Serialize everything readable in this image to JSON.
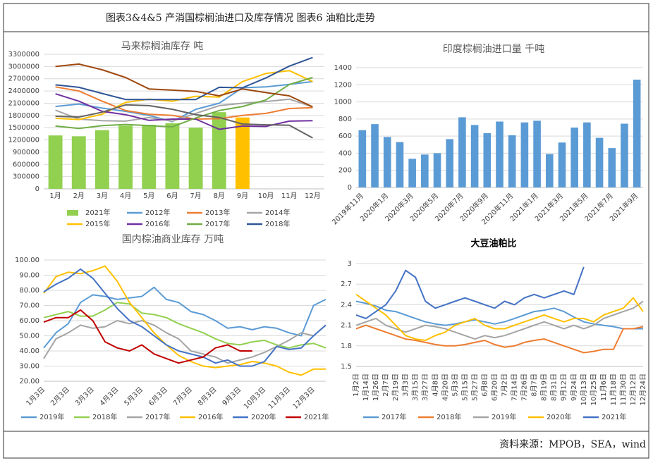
{
  "header": {
    "title": "图表3&4&5 产消国棕榈油进口及库存情况 图表6 油粕比走势"
  },
  "footer": {
    "source": "资料来源：MPOB，SEA，wind"
  },
  "chart_data": [
    {
      "type": "combo",
      "title": "马来棕榈油库存    吨",
      "categories": [
        "1月",
        "2月",
        "3月",
        "4月",
        "5月",
        "6月",
        "7月",
        "8月",
        "9月",
        "10月",
        "11月",
        "12月"
      ],
      "ylim": [
        0,
        3300000
      ],
      "yticks": [
        0,
        300000,
        600000,
        900000,
        1200000,
        1500000,
        1800000,
        2100000,
        2400000,
        2700000,
        3000000,
        3300000
      ],
      "series": [
        {
          "name": "2021年",
          "kind": "bar",
          "color": "#92d050",
          "colors": [
            "#92d050",
            "#92d050",
            "#92d050",
            "#92d050",
            "#92d050",
            "#92d050",
            "#92d050",
            "#92d050",
            "#ffc000",
            null,
            null,
            null
          ],
          "values": [
            1310000,
            1290000,
            1440000,
            1550000,
            1570000,
            1610000,
            1500000,
            1880000,
            1750000,
            null,
            null,
            null
          ]
        },
        {
          "name": "2012年",
          "kind": "line",
          "color": "#5b9bd5",
          "values": [
            2020000,
            2080000,
            1980000,
            1900000,
            1800000,
            1650000,
            1950000,
            2100000,
            2480000,
            2500000,
            2560000,
            2630000
          ]
        },
        {
          "name": "2013年",
          "kind": "line",
          "color": "#ed7d31",
          "values": [
            2500000,
            2400000,
            2150000,
            1920000,
            1830000,
            1800000,
            1710000,
            1720000,
            1800000,
            1850000,
            1970000,
            1990000
          ]
        },
        {
          "name": "2014年",
          "kind": "line",
          "color": "#a5a5a5",
          "values": [
            1930000,
            1710000,
            1670000,
            1660000,
            1750000,
            1660000,
            1850000,
            2040000,
            2100000,
            2140000,
            2200000,
            2010000
          ]
        },
        {
          "name": "2015年",
          "kind": "line",
          "color": "#ffc000",
          "values": [
            1730000,
            1700000,
            1830000,
            2120000,
            2200000,
            2150000,
            2270000,
            2250000,
            2630000,
            2830000,
            2900000,
            2630000
          ]
        },
        {
          "name": "2016年",
          "kind": "line",
          "color": "#7030a0",
          "values": [
            2330000,
            2150000,
            1900000,
            1820000,
            1680000,
            1710000,
            1710000,
            1460000,
            1540000,
            1530000,
            1660000,
            1670000
          ]
        },
        {
          "name": "2017年",
          "kind": "line",
          "color": "#70ad47",
          "values": [
            1540000,
            1480000,
            1550000,
            1580000,
            1550000,
            1520000,
            1740000,
            1920000,
            2020000,
            2180000,
            2560000,
            2730000
          ]
        },
        {
          "name": "2018年",
          "kind": "line",
          "color": "#2f5597",
          "values": [
            2550000,
            2490000,
            2340000,
            2190000,
            2190000,
            2190000,
            2190000,
            2490000,
            2480000,
            2720000,
            3010000,
            3220000
          ]
        },
        {
          "kind": "line",
          "color": "#9e480e",
          "values": [
            3000000,
            3060000,
            2920000,
            2730000,
            2450000,
            2420000,
            2390000,
            2280000,
            2450000,
            2360000,
            2280000,
            2010000
          ]
        },
        {
          "kind": "line",
          "color": "#636363",
          "values": [
            1780000,
            1760000,
            1880000,
            2060000,
            2040000,
            1950000,
            1820000,
            1750000,
            1590000,
            1570000,
            1560000,
            1250000
          ]
        }
      ]
    },
    {
      "type": "bar",
      "title": "印度棕榈油进口量    千吨",
      "color": "#5b9bd5",
      "categories": [
        "2019年11月",
        null,
        "2020年1月",
        null,
        "2020年3月",
        null,
        "2020年5月",
        null,
        "2020年7月",
        null,
        "2020年9月",
        null,
        "2020年11月",
        null,
        "2021年1月",
        null,
        "2021年3月",
        null,
        "2021年5月",
        null,
        "2021年7月",
        null,
        "2021年9月"
      ],
      "values": [
        670,
        740,
        590,
        530,
        335,
        385,
        400,
        565,
        820,
        730,
        635,
        770,
        610,
        760,
        780,
        390,
        525,
        700,
        760,
        580,
        460,
        745,
        1260
      ],
      "ylim": [
        0,
        1400
      ],
      "yticks": [
        0,
        200,
        400,
        600,
        800,
        1000,
        1200,
        1400
      ]
    },
    {
      "type": "line",
      "title": "国内棕油商业库存  万吨",
      "categories": [
        "1月3日",
        null,
        "2月3日",
        null,
        "3月3日",
        null,
        "4月3日",
        null,
        "5月3日",
        null,
        "6月3日",
        null,
        "7月3日",
        null,
        "8月3日",
        null,
        "9月3日",
        null,
        "10月3日",
        null,
        "11月3日",
        null,
        "12月3日",
        null
      ],
      "ylim": [
        20,
        100
      ],
      "yticks": [
        {
          "value": 20,
          "label": "20.00"
        },
        {
          "value": 30,
          "label": "30.00"
        },
        {
          "value": 40,
          "label": "40.00"
        },
        {
          "value": 50,
          "label": "50.00"
        },
        {
          "value": 60,
          "label": "60.00"
        },
        {
          "value": 70,
          "label": "70.00"
        },
        {
          "value": 80,
          "label": "80.00"
        },
        {
          "value": 90,
          "label": "90.00"
        },
        {
          "value": 100,
          "label": "100.00"
        }
      ],
      "series": [
        {
          "name": "2019年",
          "color": "#5b9bd5",
          "values": [
            42,
            52,
            58,
            72,
            77,
            76,
            74,
            75,
            76,
            82,
            74,
            72,
            66,
            64,
            60,
            55,
            56,
            54,
            56,
            55,
            52,
            50,
            70,
            74
          ]
        },
        {
          "name": "2018年",
          "color": "#92d050",
          "values": [
            62,
            64,
            66,
            63,
            63,
            67,
            72,
            71,
            65,
            64,
            62,
            58,
            55,
            52,
            48,
            45,
            44,
            46,
            47,
            44,
            42,
            44,
            45,
            42
          ]
        },
        {
          "name": "2017年",
          "color": "#a5a5a5",
          "values": [
            35,
            48,
            52,
            57,
            55,
            56,
            60,
            58,
            60,
            57,
            52,
            48,
            40,
            38,
            36,
            32,
            34,
            36,
            39,
            43,
            47,
            52,
            50,
            57
          ]
        },
        {
          "name": "2016年",
          "color": "#ffc000",
          "values": [
            78,
            89,
            92,
            91,
            93,
            96,
            86,
            72,
            62,
            52,
            44,
            37,
            33,
            30,
            29,
            30,
            31,
            33,
            32,
            30,
            26,
            24,
            28,
            28
          ]
        },
        {
          "name": "2020年",
          "color": "#4472c4",
          "values": [
            79,
            84,
            88,
            94,
            88,
            78,
            68,
            60,
            56,
            50,
            44,
            40,
            38,
            36,
            32,
            34,
            30,
            30,
            33,
            43,
            41,
            42,
            50,
            57
          ]
        },
        {
          "name": "2021年",
          "color": "#c00000",
          "values": [
            59,
            62,
            62,
            67,
            60,
            46,
            42,
            40,
            44,
            38,
            35,
            32,
            34,
            36,
            42,
            44,
            40,
            40,
            null,
            null,
            null,
            null,
            null,
            null
          ]
        }
      ]
    },
    {
      "type": "line",
      "title": "大豆油粕比",
      "categories": [
        "1月2日",
        "1月14日",
        "1月26日",
        "2月7日",
        "2月19日",
        "3月3日",
        "3月15日",
        "3月27日",
        "4月8日",
        "4月20日",
        "5月3日",
        "5月15日",
        "5月27日",
        "6月8日",
        "6月20日",
        "7月2日",
        "7月14日",
        "7月26日",
        "8月7日",
        "8月19日",
        "8月31日",
        "9月12日",
        "9月24日",
        "10月13日",
        "10月25日",
        "11月6日",
        "11月18日",
        "11月30日",
        "12月12日",
        "12月24日"
      ],
      "ylim": [
        1.5,
        3
      ],
      "yticks": [
        1.5,
        1.8,
        2.1,
        2.4,
        2.7,
        3
      ],
      "series": [
        {
          "name": "2017年",
          "color": "#5b9bd5",
          "values": [
            2.45,
            2.42,
            2.38,
            2.32,
            2.3,
            2.25,
            2.2,
            2.15,
            2.12,
            2.1,
            2.12,
            2.15,
            2.18,
            2.15,
            2.12,
            2.15,
            2.2,
            2.25,
            2.3,
            2.32,
            2.35,
            2.3,
            2.22,
            2.15,
            2.12,
            2.1,
            2.08,
            2.05,
            2.05,
            2.05
          ]
        },
        {
          "name": "2018年",
          "color": "#ed7d31",
          "values": [
            2.05,
            2.1,
            2.05,
            2.0,
            1.95,
            1.9,
            1.88,
            1.85,
            1.82,
            1.8,
            1.8,
            1.82,
            1.85,
            1.88,
            1.82,
            1.78,
            1.8,
            1.85,
            1.88,
            1.9,
            1.85,
            1.8,
            1.75,
            1.7,
            1.72,
            1.75,
            1.75,
            2.05,
            2.05,
            2.08
          ]
        },
        {
          "name": "2019年",
          "color": "#a5a5a5",
          "values": [
            2.1,
            2.15,
            2.2,
            2.1,
            2.05,
            2.0,
            2.05,
            2.1,
            2.08,
            2.05,
            2.0,
            1.95,
            1.9,
            1.95,
            1.92,
            1.95,
            2.0,
            2.05,
            2.1,
            2.15,
            2.1,
            2.05,
            2.1,
            2.05,
            2.1,
            2.2,
            2.25,
            2.3,
            2.35,
            2.45
          ]
        },
        {
          "name": "2020年",
          "color": "#ffc000",
          "values": [
            2.55,
            2.45,
            2.35,
            2.25,
            2.1,
            1.95,
            1.9,
            1.88,
            1.95,
            2.0,
            2.1,
            2.15,
            2.2,
            2.1,
            2.05,
            2.05,
            2.1,
            2.15,
            2.2,
            2.25,
            2.2,
            2.15,
            2.2,
            2.2,
            2.15,
            2.25,
            2.3,
            2.35,
            2.5,
            2.3
          ]
        },
        {
          "name": "2021年",
          "color": "#4472c4",
          "values": [
            2.25,
            2.2,
            2.3,
            2.4,
            2.6,
            2.9,
            2.8,
            2.45,
            2.35,
            2.4,
            2.45,
            2.5,
            2.45,
            2.4,
            2.35,
            2.45,
            2.4,
            2.5,
            2.55,
            2.5,
            2.55,
            2.6,
            2.55,
            2.95,
            null,
            null,
            null,
            null,
            null,
            null
          ]
        }
      ]
    }
  ]
}
